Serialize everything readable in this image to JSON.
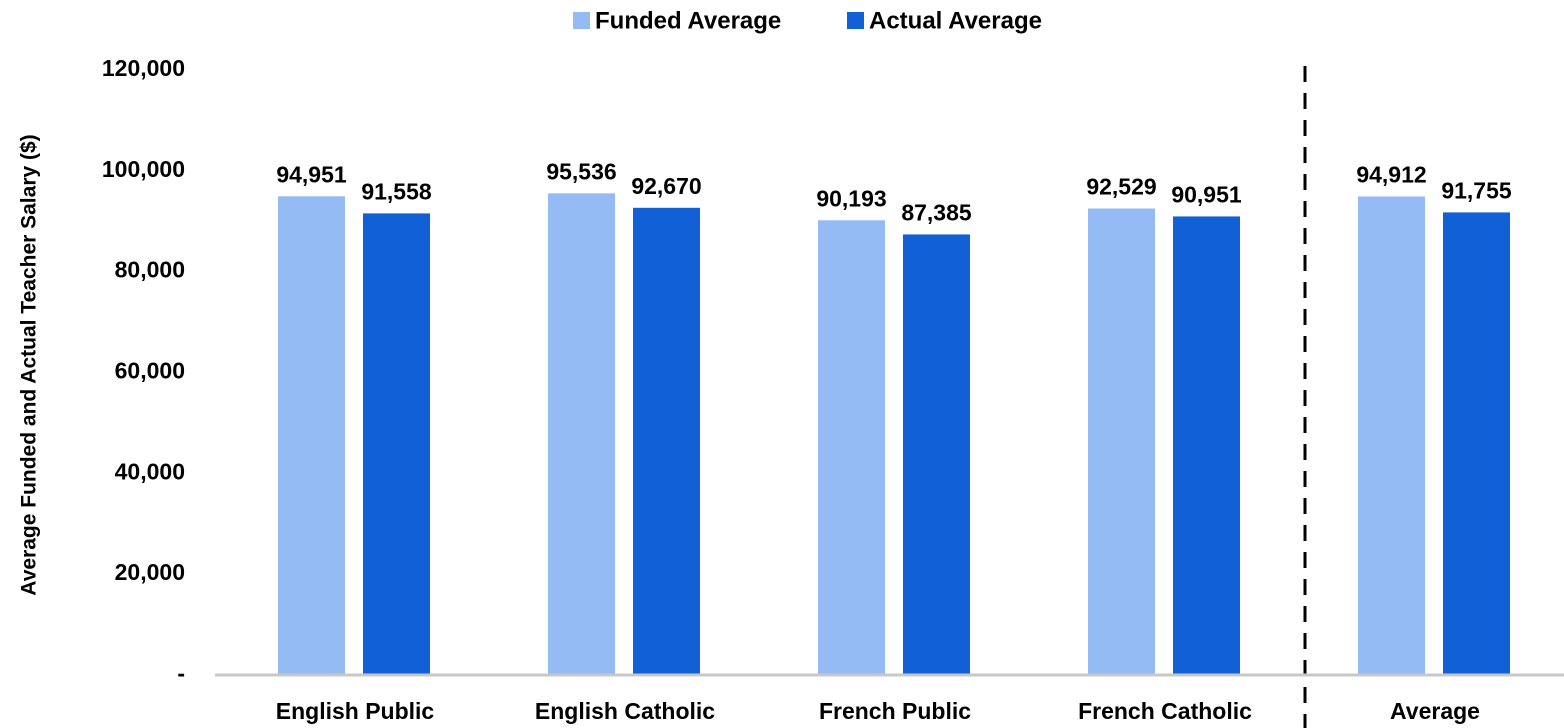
{
  "chart_data": {
    "type": "bar",
    "categories": [
      "English Public",
      "English Catholic",
      "French Public",
      "French Catholic",
      "Average"
    ],
    "series": [
      {
        "name": "Funded Average",
        "color": "#95bbf5",
        "values": [
          94951,
          95536,
          90193,
          92529,
          94912
        ],
        "value_labels": [
          "94,951",
          "95,536",
          "90,193",
          "92,529",
          "94,912"
        ]
      },
      {
        "name": "Actual Average",
        "color": "#1160d6",
        "values": [
          91558,
          92670,
          87385,
          90951,
          91755
        ],
        "value_labels": [
          "91,558",
          "92,670",
          "87,385",
          "90,951",
          "91,755"
        ]
      }
    ],
    "y_label": "Average Funded and Actual Teacher Salary ($)",
    "ylim": [
      0,
      120000
    ],
    "yticks": [
      {
        "value": 0,
        "label": "-"
      },
      {
        "value": 20000,
        "label": "20,000"
      },
      {
        "value": 40000,
        "label": "40,000"
      },
      {
        "value": 60000,
        "label": "60,000"
      },
      {
        "value": 80000,
        "label": "80,000"
      },
      {
        "value": 100000,
        "label": "100,000"
      },
      {
        "value": 120000,
        "label": "120,000"
      }
    ],
    "legend": "top"
  }
}
